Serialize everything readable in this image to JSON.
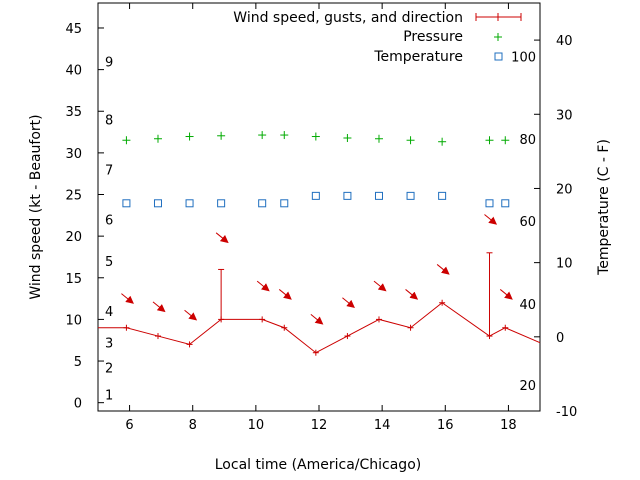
{
  "chart_data": {
    "type": "line",
    "xlabel": "Local time (America/Chicago)",
    "ylabel_left": "Wind speed (kt - Beaufort)",
    "ylabel_right": "Temperature (C - F)",
    "xlim": [
      5,
      19
    ],
    "ylim_left": [
      -1,
      48
    ],
    "ylim_right": [
      -10,
      45
    ],
    "x_ticks": [
      6,
      8,
      10,
      12,
      14,
      16,
      18
    ],
    "y_ticks_left": [
      0,
      5,
      10,
      15,
      20,
      25,
      30,
      35,
      40,
      45
    ],
    "y_ticks_right": [
      -10,
      0,
      10,
      20,
      30,
      40
    ],
    "beaufort_labels": [
      {
        "text": "1",
        "y": 1
      },
      {
        "text": "2",
        "y": 4.2
      },
      {
        "text": "3",
        "y": 7.2
      },
      {
        "text": "4",
        "y": 11
      },
      {
        "text": "5",
        "y": 17
      },
      {
        "text": "6",
        "y": 22
      },
      {
        "text": "7",
        "y": 28
      },
      {
        "text": "8",
        "y": 34
      },
      {
        "text": "9",
        "y": 41
      }
    ],
    "fahrenheit_labels": [
      {
        "text": "20",
        "t": -6.5
      },
      {
        "text": "40",
        "t": 4.4
      },
      {
        "text": "60",
        "t": 15.6
      },
      {
        "text": "80",
        "t": 26.7
      },
      {
        "text": "100",
        "t": 37.8
      }
    ],
    "legend": {
      "wind": "Wind speed, gusts, and direction",
      "pressure": "Pressure",
      "temperature": "Temperature",
      "position": "top-right"
    },
    "colors": {
      "wind": "#cc0000",
      "pressure": "#00aa00",
      "temperature": "#1f6fbf",
      "axis": "#000000"
    },
    "series": [
      {
        "name": "Wind speed, gusts, and direction",
        "x": [
          5,
          5.9,
          6.9,
          7.9,
          8.9,
          10.2,
          10.9,
          11.9,
          12.9,
          13.9,
          14.9,
          15.9,
          17.4,
          17.9,
          19
        ],
        "y": [
          9,
          9,
          8,
          7,
          10,
          10,
          9,
          6,
          8,
          10,
          9,
          12,
          8,
          9,
          7.2
        ]
      },
      {
        "name": "Pressure",
        "x": [
          5.9,
          6.9,
          7.9,
          8.9,
          10.2,
          10.9,
          11.9,
          12.9,
          13.9,
          14.9,
          15.9,
          17.4,
          17.9
        ],
        "t": [
          26.5,
          26.7,
          27,
          27.1,
          27.2,
          27.2,
          27,
          26.8,
          26.7,
          26.5,
          26.3,
          26.5,
          26.5
        ]
      },
      {
        "name": "Temperature",
        "x": [
          5.9,
          6.9,
          7.9,
          8.9,
          10.2,
          10.9,
          11.9,
          12.9,
          13.9,
          14.9,
          15.9,
          17.4,
          17.9
        ],
        "t": [
          18,
          18,
          18,
          18,
          18,
          18,
          19,
          19,
          19,
          19,
          19,
          18,
          18
        ]
      }
    ],
    "gusts": [
      {
        "x": 8.9,
        "y": 16
      },
      {
        "x": 17.4,
        "y": 18
      }
    ],
    "direction_arrows": [
      {
        "x": 5.9,
        "y": 12.5
      },
      {
        "x": 6.9,
        "y": 11.5
      },
      {
        "x": 7.9,
        "y": 10.5
      },
      {
        "x": 8.9,
        "y": 19.8
      },
      {
        "x": 10.2,
        "y": 14
      },
      {
        "x": 10.9,
        "y": 13
      },
      {
        "x": 11.9,
        "y": 10
      },
      {
        "x": 12.9,
        "y": 12
      },
      {
        "x": 13.9,
        "y": 14
      },
      {
        "x": 14.9,
        "y": 13
      },
      {
        "x": 15.9,
        "y": 16
      },
      {
        "x": 17.4,
        "y": 22
      },
      {
        "x": 17.9,
        "y": 13
      }
    ]
  }
}
